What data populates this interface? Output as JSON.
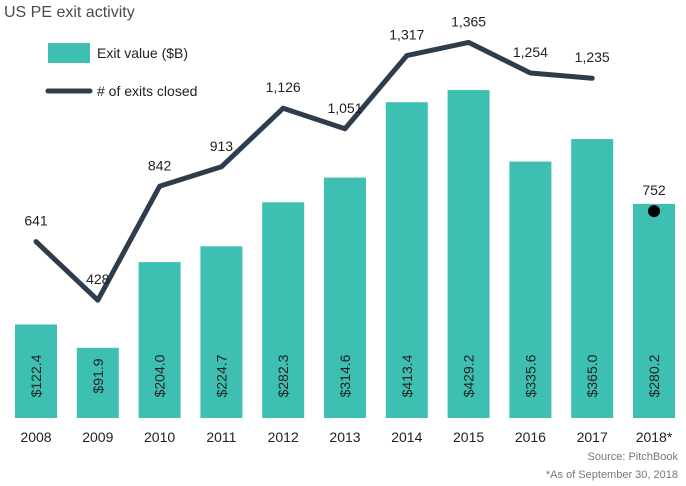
{
  "title": "US PE exit activity",
  "source": "Source: PitchBook",
  "note": "*As of September 30, 2018",
  "colors": {
    "bar": "#3dbfb1",
    "line": "#2e3d4c",
    "text": "#222222",
    "muted": "#777777"
  },
  "chart_data": {
    "type": "bar",
    "categories": [
      "2008",
      "2009",
      "2010",
      "2011",
      "2012",
      "2013",
      "2014",
      "2015",
      "2016",
      "2017",
      "2018*"
    ],
    "series": [
      {
        "name": "Exit value ($B)",
        "type": "bar",
        "values": [
          122.4,
          91.9,
          204.0,
          224.7,
          282.3,
          314.6,
          413.4,
          429.2,
          335.6,
          365.0,
          280.2
        ],
        "labels": [
          "$122.4",
          "$91.9",
          "$204.0",
          "$224.7",
          "$282.3",
          "$314.6",
          "$413.4",
          "$429.2",
          "$335.6",
          "$365.0",
          "$280.2"
        ]
      },
      {
        "name": "# of exits closed",
        "type": "line",
        "values": [
          641,
          428,
          842,
          913,
          1126,
          1051,
          1317,
          1365,
          1254,
          1235,
          752
        ],
        "labels": [
          "641",
          "428",
          "842",
          "913",
          "1,126",
          "1,051",
          "1,317",
          "1,365",
          "1,254",
          "1,235",
          "752"
        ],
        "line_points": 10,
        "marker_points": [
          10
        ]
      }
    ],
    "ylim_bar": [
      0,
      500
    ],
    "ylim_line": [
      0,
      1650
    ],
    "grid": false,
    "legend": "top-left"
  }
}
